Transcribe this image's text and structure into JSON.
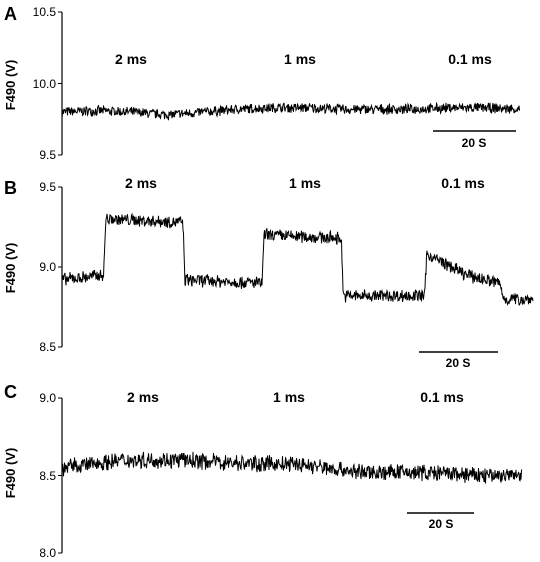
{
  "chart_data": [
    {
      "type": "line",
      "panel_label": "A",
      "ylabel": "F490 (V)",
      "ylim": [
        9.5,
        10.5
      ],
      "yticks": [
        "9.5",
        "10.0",
        "10.5"
      ],
      "conditions": [
        "2 ms",
        "1 ms",
        "0.1 ms"
      ],
      "scale_bar": "20 S",
      "series": [
        {
          "x": [
            0,
            10,
            20,
            30,
            40,
            50,
            60,
            70,
            80,
            90,
            100,
            110,
            120,
            130
          ],
          "values": [
            9.8,
            9.81,
            9.8,
            9.78,
            9.8,
            9.82,
            9.83,
            9.83,
            9.82,
            9.82,
            9.82,
            9.83,
            9.83,
            9.82
          ]
        }
      ],
      "noise_amplitude": 0.04
    },
    {
      "type": "line",
      "panel_label": "B",
      "ylabel": "F490 (V)",
      "ylim": [
        8.5,
        9.5
      ],
      "yticks": [
        "8.5",
        "9.0",
        "9.5"
      ],
      "conditions": [
        "2 ms",
        "1 ms",
        "0.1 ms"
      ],
      "scale_bar": "20 S",
      "series": [
        {
          "x": [
            0,
            10,
            10.5,
            29,
            29.5,
            48,
            48.5,
            67,
            67.5,
            87,
            87.5,
            97,
            105,
            106,
            113
          ],
          "values": [
            8.92,
            8.95,
            9.3,
            9.28,
            8.92,
            8.9,
            9.2,
            9.18,
            8.82,
            8.82,
            9.08,
            8.95,
            8.9,
            8.8,
            8.8
          ]
        }
      ],
      "noise_amplitude": 0.045
    },
    {
      "type": "line",
      "panel_label": "C",
      "ylabel": "F490 (V)",
      "ylim": [
        8.0,
        9.0
      ],
      "yticks": [
        "8.0",
        "8.5",
        "9.0"
      ],
      "conditions": [
        "2 ms",
        "1 ms",
        "0.1 ms"
      ],
      "scale_bar": "20 S",
      "series": [
        {
          "x": [
            0,
            15,
            30,
            45,
            60,
            75,
            90,
            105,
            115
          ],
          "values": [
            8.55,
            8.6,
            8.6,
            8.58,
            8.57,
            8.52,
            8.52,
            8.5,
            8.5
          ]
        }
      ],
      "noise_amplitude": 0.06
    }
  ],
  "colors": {
    "trace": "#000000",
    "axis": "#000000",
    "background": "#ffffff"
  }
}
